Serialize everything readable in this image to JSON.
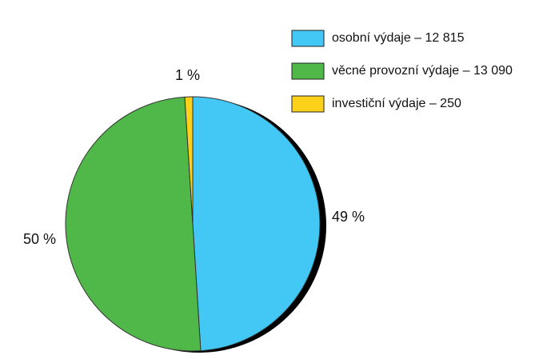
{
  "chart_data": {
    "type": "pie",
    "categories": [
      "osobní výdaje – 12 815",
      "věcné provozní výdaje – 13 090",
      "investiční výdaje – 250"
    ],
    "values": [
      49,
      50,
      1
    ],
    "value_labels": [
      "49 %",
      "50 %",
      "1 %"
    ],
    "colors": [
      "#43c7f4",
      "#4fb848",
      "#fdd11a"
    ],
    "start_angle": 0,
    "direction": "clockwise",
    "legend": "top-right"
  }
}
